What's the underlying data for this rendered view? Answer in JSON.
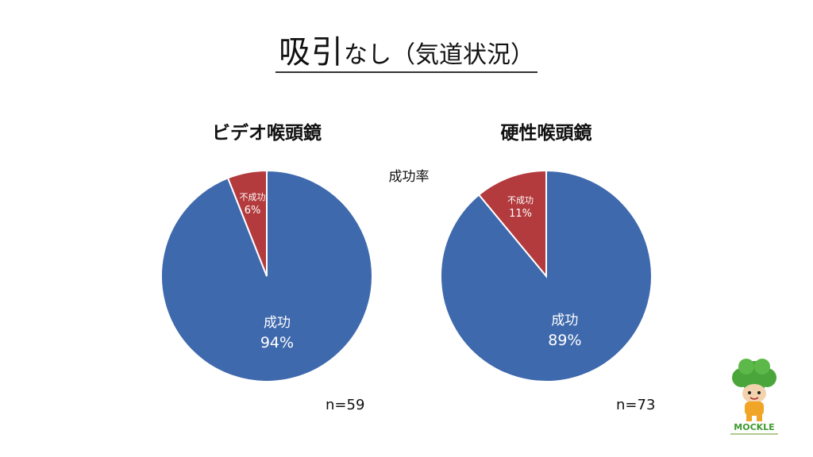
{
  "slide": {
    "title_main": "吸引",
    "title_sub": "なし（気道状況）",
    "center_label": "成功率"
  },
  "logo": {
    "text": "MOCKLE"
  },
  "chart_data": [
    {
      "type": "pie",
      "title": "ビデオ喉頭鏡",
      "slices": [
        {
          "label": "成功",
          "value": 94,
          "value_label": "94%",
          "color": "#3f69ad"
        },
        {
          "label": "不成功",
          "value": 6,
          "value_label": "6%",
          "color": "#b33a3d"
        }
      ],
      "n_label": "n=59"
    },
    {
      "type": "pie",
      "title": "硬性喉頭鏡",
      "slices": [
        {
          "label": "成功",
          "value": 89,
          "value_label": "89%",
          "color": "#3f69ad"
        },
        {
          "label": "不成功",
          "value": 11,
          "value_label": "11%",
          "color": "#b33a3d"
        }
      ],
      "n_label": "n=73"
    }
  ]
}
